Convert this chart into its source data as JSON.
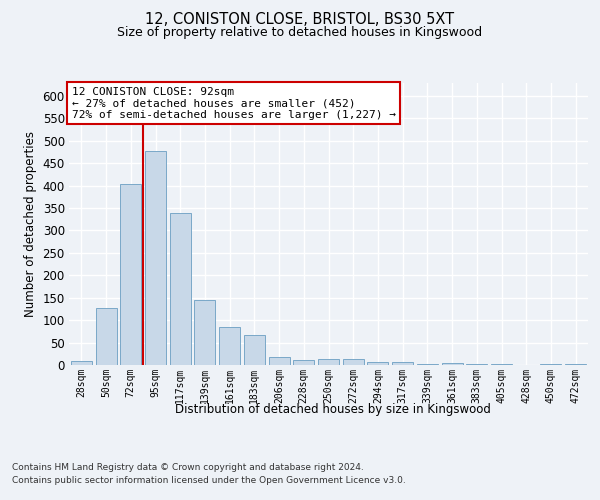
{
  "title1": "12, CONISTON CLOSE, BRISTOL, BS30 5XT",
  "title2": "Size of property relative to detached houses in Kingswood",
  "xlabel": "Distribution of detached houses by size in Kingswood",
  "ylabel": "Number of detached properties",
  "categories": [
    "28sqm",
    "50sqm",
    "72sqm",
    "95sqm",
    "117sqm",
    "139sqm",
    "161sqm",
    "183sqm",
    "206sqm",
    "228sqm",
    "250sqm",
    "272sqm",
    "294sqm",
    "317sqm",
    "339sqm",
    "361sqm",
    "383sqm",
    "405sqm",
    "428sqm",
    "450sqm",
    "472sqm"
  ],
  "values": [
    8,
    127,
    404,
    477,
    338,
    145,
    85,
    68,
    17,
    11,
    13,
    13,
    6,
    6,
    3,
    4,
    3,
    3,
    0,
    3,
    3
  ],
  "bar_color": "#c8d8e8",
  "bar_edge_color": "#7aa8c8",
  "vline_index": 2.5,
  "ylim": [
    0,
    630
  ],
  "yticks": [
    0,
    50,
    100,
    150,
    200,
    250,
    300,
    350,
    400,
    450,
    500,
    550,
    600
  ],
  "annotation_title": "12 CONISTON CLOSE: 92sqm",
  "annotation_line1": "← 27% of detached houses are smaller (452)",
  "annotation_line2": "72% of semi-detached houses are larger (1,227) →",
  "annotation_box_color": "#ffffff",
  "annotation_box_edge_color": "#cc0000",
  "vline_color": "#cc0000",
  "footer1": "Contains HM Land Registry data © Crown copyright and database right 2024.",
  "footer2": "Contains public sector information licensed under the Open Government Licence v3.0.",
  "bg_color": "#eef2f7",
  "plot_bg_color": "#eef2f7",
  "grid_color": "#ffffff"
}
